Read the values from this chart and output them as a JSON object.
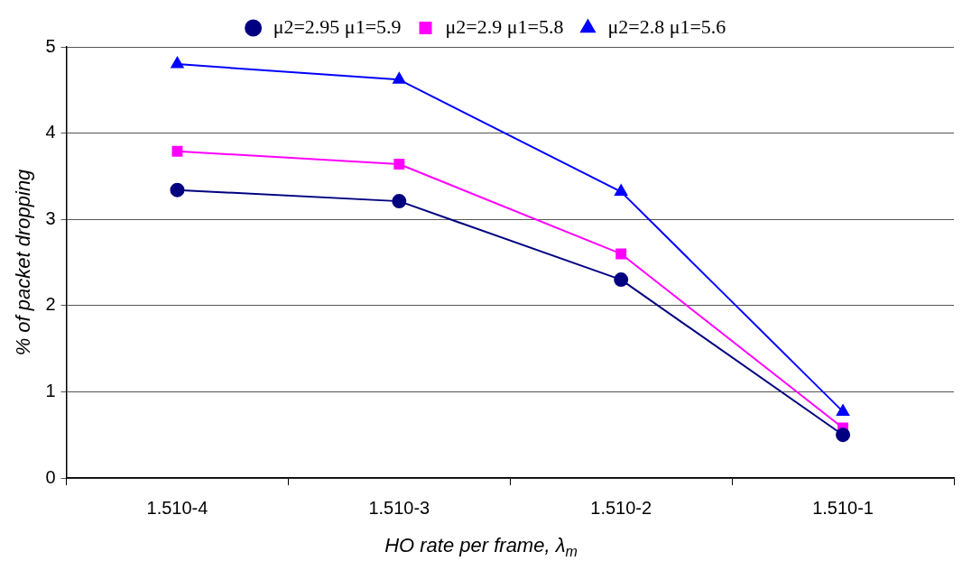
{
  "chart_data": {
    "type": "line",
    "xlabel": "HO rate per frame, λ$_{m}$",
    "ylabel": "% of packet dropping",
    "categories": [
      "1.510-4",
      "1.510-3",
      "1.510-2",
      "1.510-1"
    ],
    "series": [
      {
        "name": "μ2=2.95 μ1=5.9",
        "color": "#000080",
        "marker": "circle",
        "values": [
          3.34,
          3.21,
          2.3,
          0.5
        ]
      },
      {
        "name": "μ2=2.9 μ1=5.8",
        "color": "#ff00ff",
        "marker": "square",
        "values": [
          3.79,
          3.64,
          2.6,
          0.58
        ]
      },
      {
        "name": "μ2=2.8 μ1=5.6",
        "color": "#0000ff",
        "marker": "triangle",
        "values": [
          4.8,
          4.62,
          3.32,
          0.77
        ]
      }
    ],
    "ylim": [
      0,
      5
    ],
    "yticks": [
      0,
      1,
      2,
      3,
      4,
      5
    ],
    "grid": "y",
    "legend": "top",
    "line_style": "solid"
  }
}
